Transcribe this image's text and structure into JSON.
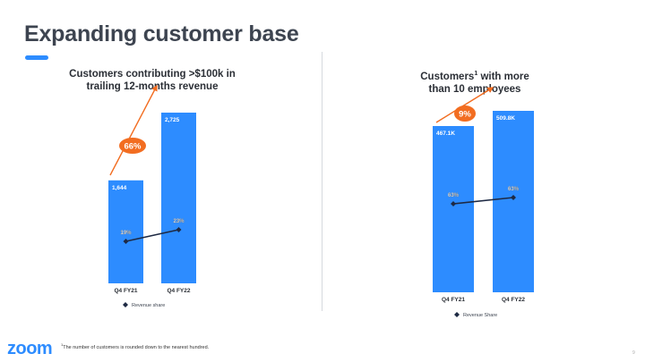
{
  "title": "Expanding customer base",
  "footnote_marker": "1",
  "footnote": "The number of customers is rounded down to the nearest hundred.",
  "logo": "zoom",
  "page_number": "9",
  "colors": {
    "bar": "#2d8cff",
    "growth": "#f26d21",
    "line": "#1e2a44",
    "title": "#3d4450"
  },
  "chart_data": [
    {
      "type": "bar",
      "title": "Customers contributing >$100k in trailing 12-months revenue",
      "title_lines": [
        "Customers contributing >$100k in",
        "trailing 12-months revenue"
      ],
      "categories": [
        "Q4 FY21",
        "Q4 FY22"
      ],
      "series": [
        {
          "name": "Customers",
          "values": [
            1644,
            2725
          ],
          "labels": [
            "1,644",
            "2,725"
          ]
        }
      ],
      "line_series": {
        "name": "Revenue share",
        "values": [
          19,
          23
        ],
        "labels": [
          "19%",
          "23%"
        ]
      },
      "growth_label": "66%",
      "legend": "Revenue share",
      "ylim": [
        0,
        2725
      ]
    },
    {
      "type": "bar",
      "title": "Customers with more than 10 employees",
      "title_lines": [
        "Customers",
        "with more",
        "than 10 employees"
      ],
      "title_superscript": "1",
      "categories": [
        "Q4 FY21",
        "Q4 FY22"
      ],
      "series": [
        {
          "name": "Customers",
          "values": [
            467.1,
            509.8
          ],
          "labels": [
            "467.1K",
            "509.8K"
          ]
        }
      ],
      "line_series": {
        "name": "Revenue Share",
        "values": [
          63,
          63
        ],
        "labels": [
          "63%",
          "63%"
        ]
      },
      "growth_label": "9%",
      "legend": "Revenue Share",
      "ylim": [
        0,
        509.8
      ]
    }
  ]
}
